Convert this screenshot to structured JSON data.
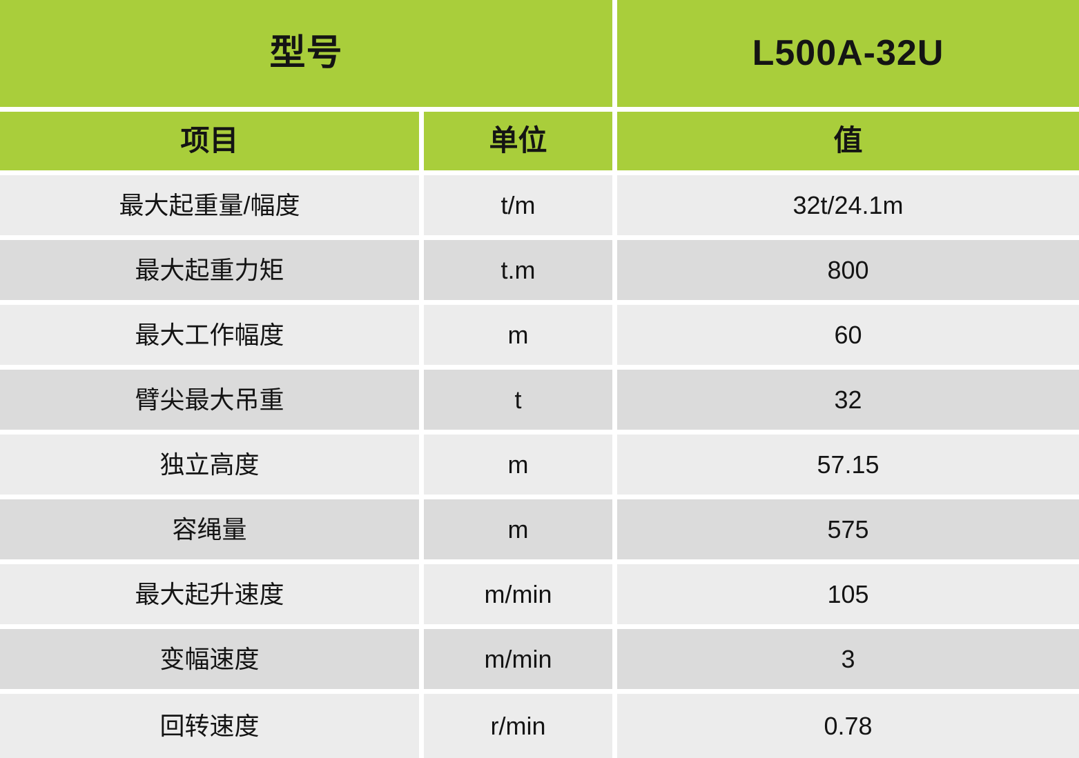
{
  "table": {
    "model_header": {
      "label": "型号",
      "value": "L500A-32U"
    },
    "columns": {
      "item": "项目",
      "unit": "单位",
      "value": "值"
    },
    "rows": [
      {
        "item": "最大起重量/幅度",
        "unit": "t/m",
        "value": "32t/24.1m"
      },
      {
        "item": "最大起重力矩",
        "unit": "t.m",
        "value": "800"
      },
      {
        "item": "最大工作幅度",
        "unit": "m",
        "value": "60"
      },
      {
        "item": "臂尖最大吊重",
        "unit": "t",
        "value": "32"
      },
      {
        "item": "独立高度",
        "unit": "m",
        "value": "57.15"
      },
      {
        "item": "容绳量",
        "unit": "m",
        "value": "575"
      },
      {
        "item": "最大起升速度",
        "unit": "m/min",
        "value": "105"
      },
      {
        "item": "变幅速度",
        "unit": "m/min",
        "value": "3"
      },
      {
        "item": "回转速度",
        "unit": "r/min",
        "value": "0.78"
      }
    ],
    "colors": {
      "header_green": "#a9ce3b",
      "row_light": "#ececec",
      "row_dark": "#dbdbdb",
      "gap_white": "#ffffff",
      "text": "#141414"
    }
  }
}
